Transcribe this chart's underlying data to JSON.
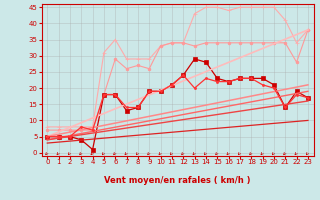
{
  "title": "",
  "xlabel": "Vent moyen/en rafales ( km/h )",
  "ylabel": "",
  "xlim": [
    -0.5,
    23.5
  ],
  "ylim": [
    -1,
    46
  ],
  "yticks": [
    0,
    5,
    10,
    15,
    20,
    25,
    30,
    35,
    40,
    45
  ],
  "xticks": [
    0,
    1,
    2,
    3,
    4,
    5,
    6,
    7,
    8,
    9,
    10,
    11,
    12,
    13,
    14,
    15,
    16,
    17,
    18,
    19,
    20,
    21,
    22,
    23
  ],
  "background_color": "#cce8e8",
  "grid_color": "#aaaaaa",
  "lines": [
    {
      "x": [
        0,
        1,
        2,
        3,
        4,
        5,
        6,
        7,
        8,
        9,
        10,
        11,
        12,
        13,
        14,
        15,
        16,
        17,
        18,
        19,
        20,
        21,
        22,
        23
      ],
      "y": [
        8,
        8,
        8,
        8,
        8,
        31,
        35,
        29,
        29,
        29,
        33,
        34,
        34,
        43,
        45,
        45,
        44,
        45,
        45,
        45,
        45,
        41,
        34,
        38
      ],
      "color": "#ffaaaa",
      "marker": "+",
      "lw": 0.8,
      "ms": 3.5
    },
    {
      "x": [
        0,
        1,
        2,
        3,
        4,
        5,
        6,
        7,
        8,
        9,
        10,
        11,
        12,
        13,
        14,
        15,
        16,
        17,
        18,
        19,
        20,
        21,
        22,
        23
      ],
      "y": [
        7,
        7,
        7,
        7,
        7,
        18,
        29,
        26,
        27,
        26,
        33,
        34,
        34,
        33,
        34,
        34,
        34,
        34,
        34,
        34,
        34,
        34,
        28,
        38
      ],
      "color": "#ff9999",
      "marker": ".",
      "lw": 0.8,
      "ms": 4
    },
    {
      "x": [
        0,
        1,
        2,
        3,
        4,
        5,
        6,
        7,
        8,
        9,
        10,
        11,
        12,
        13,
        14,
        15,
        16,
        17,
        18,
        19,
        20,
        21,
        22,
        23
      ],
      "y": [
        5,
        5,
        5,
        4,
        1,
        18,
        18,
        13,
        14,
        19,
        19,
        21,
        24,
        29,
        28,
        23,
        22,
        23,
        23,
        23,
        21,
        14,
        19,
        17
      ],
      "color": "#cc0000",
      "marker": "s",
      "lw": 0.9,
      "ms": 2.5
    },
    {
      "x": [
        0,
        23
      ],
      "y": [
        5,
        38
      ],
      "color": "#ffbbbb",
      "marker": null,
      "lw": 1.2,
      "ms": 0
    },
    {
      "x": [
        0,
        23
      ],
      "y": [
        5,
        21
      ],
      "color": "#ff8888",
      "marker": null,
      "lw": 1.1,
      "ms": 0
    },
    {
      "x": [
        0,
        23
      ],
      "y": [
        4,
        19
      ],
      "color": "#ff6666",
      "marker": null,
      "lw": 1.0,
      "ms": 0
    },
    {
      "x": [
        0,
        23
      ],
      "y": [
        4,
        16
      ],
      "color": "#ee4444",
      "marker": null,
      "lw": 1.0,
      "ms": 0
    },
    {
      "x": [
        0,
        23
      ],
      "y": [
        3,
        10
      ],
      "color": "#dd2222",
      "marker": null,
      "lw": 0.9,
      "ms": 0
    },
    {
      "x": [
        0,
        1,
        2,
        3,
        4,
        5,
        6,
        7,
        8,
        9,
        10,
        11,
        12,
        13,
        14,
        15,
        16,
        17,
        18,
        19,
        20,
        21,
        22,
        23
      ],
      "y": [
        5,
        5,
        5,
        8,
        7,
        18,
        18,
        14,
        14,
        19,
        19,
        21,
        24,
        20,
        23,
        22,
        22,
        23,
        23,
        21,
        20,
        14,
        18,
        17
      ],
      "color": "#ff3333",
      "marker": ".",
      "lw": 0.9,
      "ms": 3
    }
  ],
  "xlabel_color": "#cc0000",
  "tick_color": "#cc0000",
  "axis_color": "#cc0000",
  "arrow_color": "#cc0000"
}
